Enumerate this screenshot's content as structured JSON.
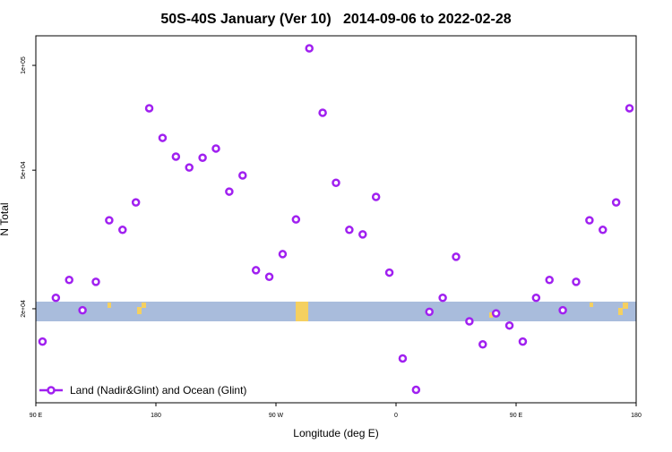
{
  "chart_data": {
    "type": "scatter",
    "title": "50S-40S January (Ver 10)   2014-09-06 to 2022-02-28",
    "x_label": "Longitude (deg E)",
    "y_label": "N Total",
    "log_y": true,
    "legend": "bottom-left",
    "xlim": [
      -270,
      180
    ],
    "xticks": [
      {
        "value": -270,
        "label": "90 E"
      },
      {
        "value": -180,
        "label": "180"
      },
      {
        "value": -90,
        "label": "90 W"
      },
      0,
      {
        "value": 90,
        "label": "90 E"
      },
      {
        "value": 180,
        "label": "180"
      }
    ],
    "ylim": [
      10740,
      121600
    ],
    "yticks": [
      {
        "value": 20000,
        "label": "2e+04"
      },
      {
        "value": 50000,
        "label": "5e+04"
      },
      {
        "value": 100000,
        "label": "1e+05"
      }
    ],
    "series": [
      {
        "name": "Land (Nadir&Glint) and Ocean (Glint)",
        "color": "#a020f0",
        "x": [
          -265,
          -255,
          -245,
          -235,
          -225,
          -215,
          -205,
          -195,
          -185,
          -175,
          -165,
          -155,
          -145,
          -135,
          -125,
          -115,
          -105,
          -95,
          -85,
          -75,
          -65,
          -55,
          -45,
          -35,
          -25,
          -15,
          -5,
          5,
          15,
          25,
          35,
          45,
          55,
          65,
          75,
          85,
          95,
          105,
          115,
          125,
          135,
          145,
          155,
          165,
          175
        ],
        "values": [
          16100,
          21500,
          24200,
          19800,
          23900,
          35900,
          33700,
          40400,
          75300,
          61900,
          54700,
          50900,
          54300,
          57700,
          43400,
          48300,
          25800,
          24700,
          28700,
          36100,
          111900,
          73100,
          46000,
          33700,
          32700,
          41900,
          25400,
          14400,
          11700,
          19600,
          21500,
          28200,
          18400,
          15800,
          19400,
          17900,
          16100,
          21500,
          24200,
          19800,
          23900,
          35900,
          33700,
          40400,
          75300
        ]
      }
    ]
  }
}
